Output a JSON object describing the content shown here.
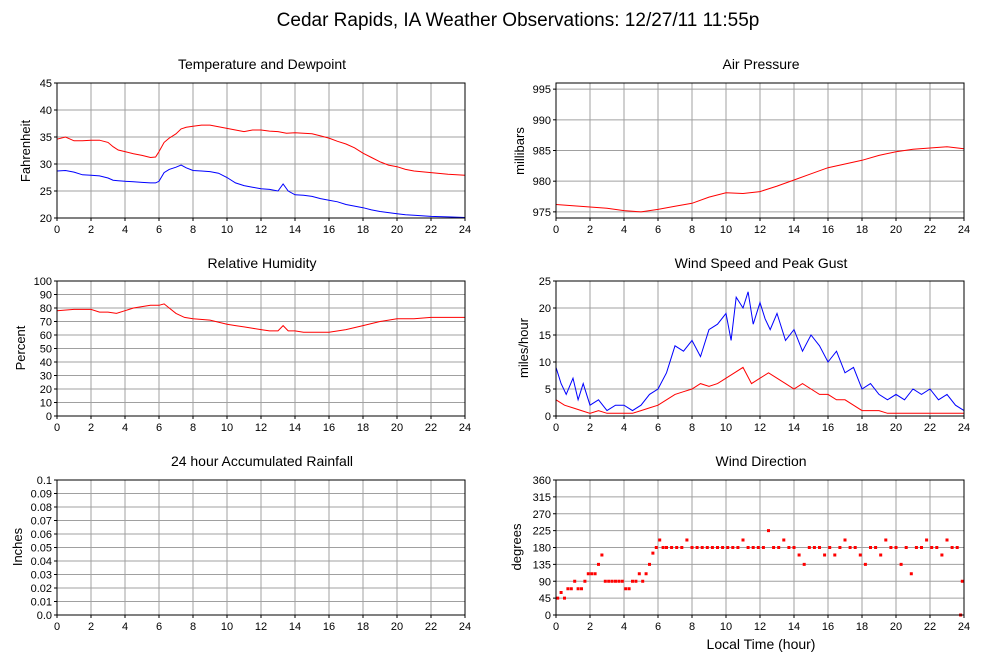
{
  "page": {
    "title": "Cedar Rapids, IA Weather Observations: 12/27/11 11:55p",
    "xaxis_label": "Local Time (hour)"
  },
  "colors": {
    "red": "#ff0000",
    "blue": "#0000ff",
    "grid": "#a0a0a0",
    "axis": "#000000"
  },
  "chart_data": [
    {
      "id": "temp",
      "type": "line",
      "title": "Temperature and Dewpoint",
      "ylabel": "Fahrenheit",
      "xlim": [
        0,
        24
      ],
      "ylim": [
        20,
        45
      ],
      "xticks": [
        0,
        2,
        4,
        6,
        8,
        10,
        12,
        14,
        16,
        18,
        20,
        22,
        24
      ],
      "yticks": [
        20,
        25,
        30,
        35,
        40,
        45
      ],
      "grid": true,
      "series": [
        {
          "color": "#ff0000",
          "x": [
            0,
            0.5,
            1,
            1.5,
            2,
            2.5,
            3,
            3.3,
            3.6,
            4,
            4.5,
            5,
            5.5,
            5.8,
            6,
            6.3,
            6.6,
            7,
            7.3,
            7.6,
            8,
            8.5,
            9,
            9.5,
            10,
            10.5,
            11,
            11.5,
            12,
            12.5,
            13,
            13.5,
            14,
            14.5,
            15,
            15.5,
            16,
            16.5,
            17,
            17.5,
            18,
            18.5,
            19,
            19.5,
            20,
            20.5,
            21,
            22,
            23,
            24
          ],
          "y": [
            34.6,
            35.0,
            34.3,
            34.3,
            34.4,
            34.4,
            34.0,
            33.2,
            32.6,
            32.3,
            31.9,
            31.6,
            31.2,
            31.3,
            32.3,
            34.0,
            34.8,
            35.6,
            36.5,
            36.8,
            37.0,
            37.2,
            37.2,
            36.9,
            36.6,
            36.3,
            36.0,
            36.3,
            36.3,
            36.1,
            36.0,
            35.7,
            35.8,
            35.7,
            35.6,
            35.2,
            34.8,
            34.2,
            33.7,
            33.0,
            32.0,
            31.2,
            30.4,
            29.8,
            29.5,
            29.0,
            28.7,
            28.4,
            28.1,
            27.9
          ]
        },
        {
          "color": "#0000ff",
          "x": [
            0,
            0.5,
            1,
            1.5,
            2,
            2.5,
            3,
            3.3,
            3.6,
            4,
            4.5,
            5,
            5.5,
            5.8,
            6,
            6.3,
            6.6,
            7,
            7.3,
            7.6,
            8,
            8.5,
            9,
            9.5,
            10,
            10.5,
            11,
            11.5,
            12,
            12.5,
            13,
            13.3,
            13.6,
            14,
            14.5,
            15,
            15.5,
            16,
            16.5,
            17,
            17.5,
            18,
            18.5,
            19,
            19.5,
            20,
            20.5,
            21,
            22,
            23,
            24
          ],
          "y": [
            28.7,
            28.8,
            28.5,
            28.0,
            27.9,
            27.8,
            27.4,
            27.0,
            26.9,
            26.8,
            26.7,
            26.6,
            26.5,
            26.5,
            26.8,
            28.4,
            29.0,
            29.4,
            29.8,
            29.3,
            28.8,
            28.7,
            28.6,
            28.3,
            27.5,
            26.5,
            26.0,
            25.7,
            25.4,
            25.3,
            25.0,
            26.3,
            25.0,
            24.3,
            24.2,
            24.0,
            23.6,
            23.3,
            23.0,
            22.5,
            22.2,
            21.9,
            21.5,
            21.2,
            21.0,
            20.8,
            20.6,
            20.5,
            20.3,
            20.2,
            20.1
          ]
        }
      ]
    },
    {
      "id": "pressure",
      "type": "line",
      "title": "Air Pressure",
      "ylabel": "millibars",
      "xlim": [
        0,
        24
      ],
      "ylim": [
        974,
        996
      ],
      "xticks": [
        0,
        2,
        4,
        6,
        8,
        10,
        12,
        14,
        16,
        18,
        20,
        22,
        24
      ],
      "yticks": [
        975,
        980,
        985,
        990,
        995
      ],
      "grid": true,
      "series": [
        {
          "color": "#ff0000",
          "x": [
            0,
            1,
            2,
            3,
            4,
            5,
            6,
            7,
            8,
            9,
            10,
            11,
            12,
            13,
            14,
            15,
            16,
            17,
            18,
            19,
            20,
            21,
            22,
            23,
            24
          ],
          "y": [
            976.2,
            976.0,
            975.8,
            975.6,
            975.2,
            975.0,
            975.4,
            975.9,
            976.4,
            977.4,
            978.1,
            978.0,
            978.3,
            979.2,
            980.2,
            981.2,
            982.2,
            982.8,
            983.4,
            984.2,
            984.8,
            985.2,
            985.4,
            985.6,
            985.3
          ]
        }
      ]
    },
    {
      "id": "humidity",
      "type": "line",
      "title": "Relative Humidity",
      "ylabel": "Percent",
      "xlim": [
        0,
        24
      ],
      "ylim": [
        0,
        100
      ],
      "xticks": [
        0,
        2,
        4,
        6,
        8,
        10,
        12,
        14,
        16,
        18,
        20,
        22,
        24
      ],
      "yticks": [
        0,
        10,
        20,
        30,
        40,
        50,
        60,
        70,
        80,
        90,
        100
      ],
      "grid": true,
      "series": [
        {
          "color": "#ff0000",
          "x": [
            0,
            1,
            2,
            2.5,
            3,
            3.5,
            4,
            4.5,
            5,
            5.5,
            6,
            6.3,
            6.6,
            7,
            7.5,
            8,
            9,
            10,
            10.5,
            11,
            11.5,
            12,
            12.5,
            13,
            13.3,
            13.6,
            14,
            14.5,
            15,
            15.5,
            16,
            17,
            18,
            19,
            20,
            21,
            22,
            23,
            24
          ],
          "y": [
            78,
            79,
            79,
            77,
            77,
            76,
            78,
            80,
            81,
            82,
            82,
            83,
            80,
            76,
            73,
            72,
            71,
            68,
            67,
            66,
            65,
            64,
            63,
            63,
            67,
            63,
            63,
            62,
            62,
            62,
            62,
            64,
            67,
            70,
            72,
            72,
            73,
            73,
            73
          ]
        }
      ]
    },
    {
      "id": "wind",
      "type": "line",
      "title": "Wind Speed and Peak Gust",
      "ylabel": "miles/hour",
      "xlim": [
        0,
        24
      ],
      "ylim": [
        0,
        25
      ],
      "xticks": [
        0,
        2,
        4,
        6,
        8,
        10,
        12,
        14,
        16,
        18,
        20,
        22,
        24
      ],
      "yticks": [
        0,
        5,
        10,
        15,
        20,
        25
      ],
      "grid": true,
      "series": [
        {
          "color": "#0000ff",
          "x": [
            0,
            0.3,
            0.6,
            1,
            1.3,
            1.6,
            2,
            2.5,
            3,
            3.5,
            4,
            4.5,
            5,
            5.5,
            6,
            6.5,
            7,
            7.5,
            8,
            8.5,
            9,
            9.5,
            10,
            10.3,
            10.6,
            11,
            11.3,
            11.6,
            12,
            12.3,
            12.6,
            13,
            13.5,
            14,
            14.5,
            15,
            15.5,
            16,
            16.5,
            17,
            17.5,
            18,
            18.5,
            19,
            19.5,
            20,
            20.5,
            21,
            21.5,
            22,
            22.5,
            23,
            23.5,
            24
          ],
          "y": [
            9,
            6,
            4,
            7,
            3,
            6,
            2,
            3,
            1,
            2,
            2,
            1,
            2,
            4,
            5,
            8,
            13,
            12,
            14,
            11,
            16,
            17,
            19,
            14,
            22,
            20,
            23,
            17,
            21,
            18,
            16,
            19,
            14,
            16,
            12,
            15,
            13,
            10,
            12,
            8,
            9,
            5,
            6,
            4,
            3,
            4,
            3,
            5,
            4,
            5,
            3,
            4,
            2,
            1
          ]
        },
        {
          "color": "#ff0000",
          "x": [
            0,
            0.5,
            1,
            1.5,
            2,
            2.5,
            3,
            3.5,
            4,
            4.5,
            5,
            5.5,
            6,
            6.5,
            7,
            7.5,
            8,
            8.5,
            9,
            9.5,
            10,
            10.5,
            11,
            11.5,
            12,
            12.5,
            13,
            13.5,
            14,
            14.5,
            15,
            15.5,
            16,
            16.5,
            17,
            17.5,
            18,
            18.5,
            19,
            19.5,
            20,
            20.5,
            21,
            21.5,
            22,
            22.5,
            23,
            23.5,
            24
          ],
          "y": [
            3,
            2,
            1.5,
            1,
            0.5,
            1,
            0.5,
            0.5,
            0.5,
            0.5,
            1,
            1.5,
            2,
            3,
            4,
            4.5,
            5,
            6,
            5.5,
            6,
            7,
            8,
            9,
            6,
            7,
            8,
            7,
            6,
            5,
            6,
            5,
            4,
            4,
            3,
            3,
            2,
            1,
            1,
            1,
            0.5,
            0.5,
            0.5,
            0.5,
            0.5,
            0.5,
            0.5,
            0.5,
            0.5,
            0.5
          ]
        }
      ]
    },
    {
      "id": "rain",
      "type": "line",
      "title": "24 hour Accumulated Rainfall",
      "ylabel": "Inches",
      "xlim": [
        0,
        24
      ],
      "ylim": [
        0,
        0.1
      ],
      "xticks": [
        0,
        2,
        4,
        6,
        8,
        10,
        12,
        14,
        16,
        18,
        20,
        22,
        24
      ],
      "yticks": [
        0.0,
        0.01,
        0.02,
        0.03,
        0.04,
        0.05,
        0.06,
        0.07,
        0.08,
        0.09,
        0.1
      ],
      "ytick_labels": [
        "0.0",
        "0.01",
        "0.02",
        "0.03",
        "0.04",
        "0.05",
        "0.06",
        "0.07",
        "0.08",
        "0.09",
        "0.1"
      ],
      "grid": true,
      "series": [
        {
          "color": "#ff0000",
          "x": [
            0,
            24
          ],
          "y": [
            0,
            0
          ]
        }
      ]
    },
    {
      "id": "winddir",
      "type": "scatter",
      "title": "Wind Direction",
      "ylabel": "degrees",
      "xlabel": "Local Time (hour)",
      "xlim": [
        0,
        24
      ],
      "ylim": [
        0,
        360
      ],
      "xticks": [
        0,
        2,
        4,
        6,
        8,
        10,
        12,
        14,
        16,
        18,
        20,
        22,
        24
      ],
      "yticks": [
        0,
        45,
        90,
        135,
        180,
        225,
        270,
        315,
        360
      ],
      "grid": true,
      "series": [
        {
          "color": "#ff0000",
          "x": [
            0.1,
            0.3,
            0.5,
            0.7,
            0.9,
            1.1,
            1.3,
            1.5,
            1.7,
            1.9,
            2.1,
            2.3,
            2.5,
            2.7,
            2.9,
            3.1,
            3.3,
            3.5,
            3.7,
            3.9,
            4.1,
            4.3,
            4.5,
            4.7,
            4.9,
            5.1,
            5.3,
            5.5,
            5.7,
            5.9,
            6.1,
            6.3,
            6.5,
            6.8,
            7.1,
            7.4,
            7.7,
            8.0,
            8.3,
            8.6,
            8.9,
            9.2,
            9.5,
            9.8,
            10.1,
            10.4,
            10.7,
            11.0,
            11.3,
            11.6,
            11.9,
            12.2,
            12.5,
            12.8,
            13.1,
            13.4,
            13.7,
            14.0,
            14.3,
            14.6,
            14.9,
            15.2,
            15.5,
            15.8,
            16.1,
            16.4,
            16.7,
            17.0,
            17.3,
            17.6,
            17.9,
            18.2,
            18.5,
            18.8,
            19.1,
            19.4,
            19.7,
            20.0,
            20.3,
            20.6,
            20.9,
            21.2,
            21.5,
            21.8,
            22.1,
            22.4,
            22.7,
            23.0,
            23.3,
            23.6,
            23.8,
            23.9
          ],
          "y": [
            45,
            60,
            45,
            70,
            70,
            90,
            70,
            70,
            90,
            110,
            110,
            110,
            135,
            160,
            90,
            90,
            90,
            90,
            90,
            90,
            70,
            70,
            90,
            90,
            110,
            90,
            110,
            135,
            165,
            180,
            200,
            180,
            180,
            180,
            180,
            180,
            200,
            180,
            180,
            180,
            180,
            180,
            180,
            180,
            180,
            180,
            180,
            200,
            180,
            180,
            180,
            180,
            225,
            180,
            180,
            200,
            180,
            180,
            160,
            135,
            180,
            180,
            180,
            160,
            180,
            160,
            180,
            200,
            180,
            180,
            160,
            135,
            180,
            180,
            160,
            200,
            180,
            180,
            135,
            180,
            110,
            180,
            180,
            200,
            180,
            180,
            160,
            200,
            180,
            180,
            0,
            90
          ]
        }
      ]
    }
  ]
}
